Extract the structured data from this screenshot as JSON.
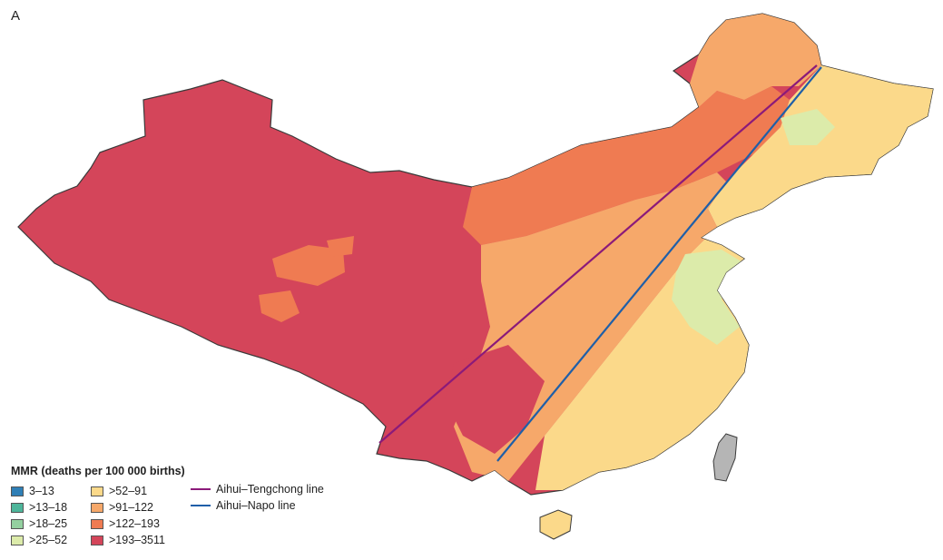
{
  "panel_label": "A",
  "legend": {
    "title": "MMR (deaths per 100 000 births)",
    "classes": [
      {
        "label": "3–13",
        "color": "#2f7fb6"
      },
      {
        "label": ">13–18",
        "color": "#4db59a"
      },
      {
        "label": ">18–25",
        "color": "#94d0a0"
      },
      {
        "label": ">25–52",
        "color": "#dcebaa"
      },
      {
        "label": ">52–91",
        "color": "#fbd98a"
      },
      {
        "label": ">91–122",
        "color": "#f6a86a"
      },
      {
        "label": ">122–193",
        "color": "#ef7b52"
      },
      {
        "label": ">193–3511",
        "color": "#d4455a"
      }
    ]
  },
  "lines": [
    {
      "label": "Aihui–Tengchong line",
      "color": "#8b1a7a"
    },
    {
      "label": "Aihui–Napo line",
      "color": "#1f5fa8"
    }
  ],
  "colors": {
    "border": "#3a3a3a",
    "taiwan": "#b5b5b5"
  }
}
